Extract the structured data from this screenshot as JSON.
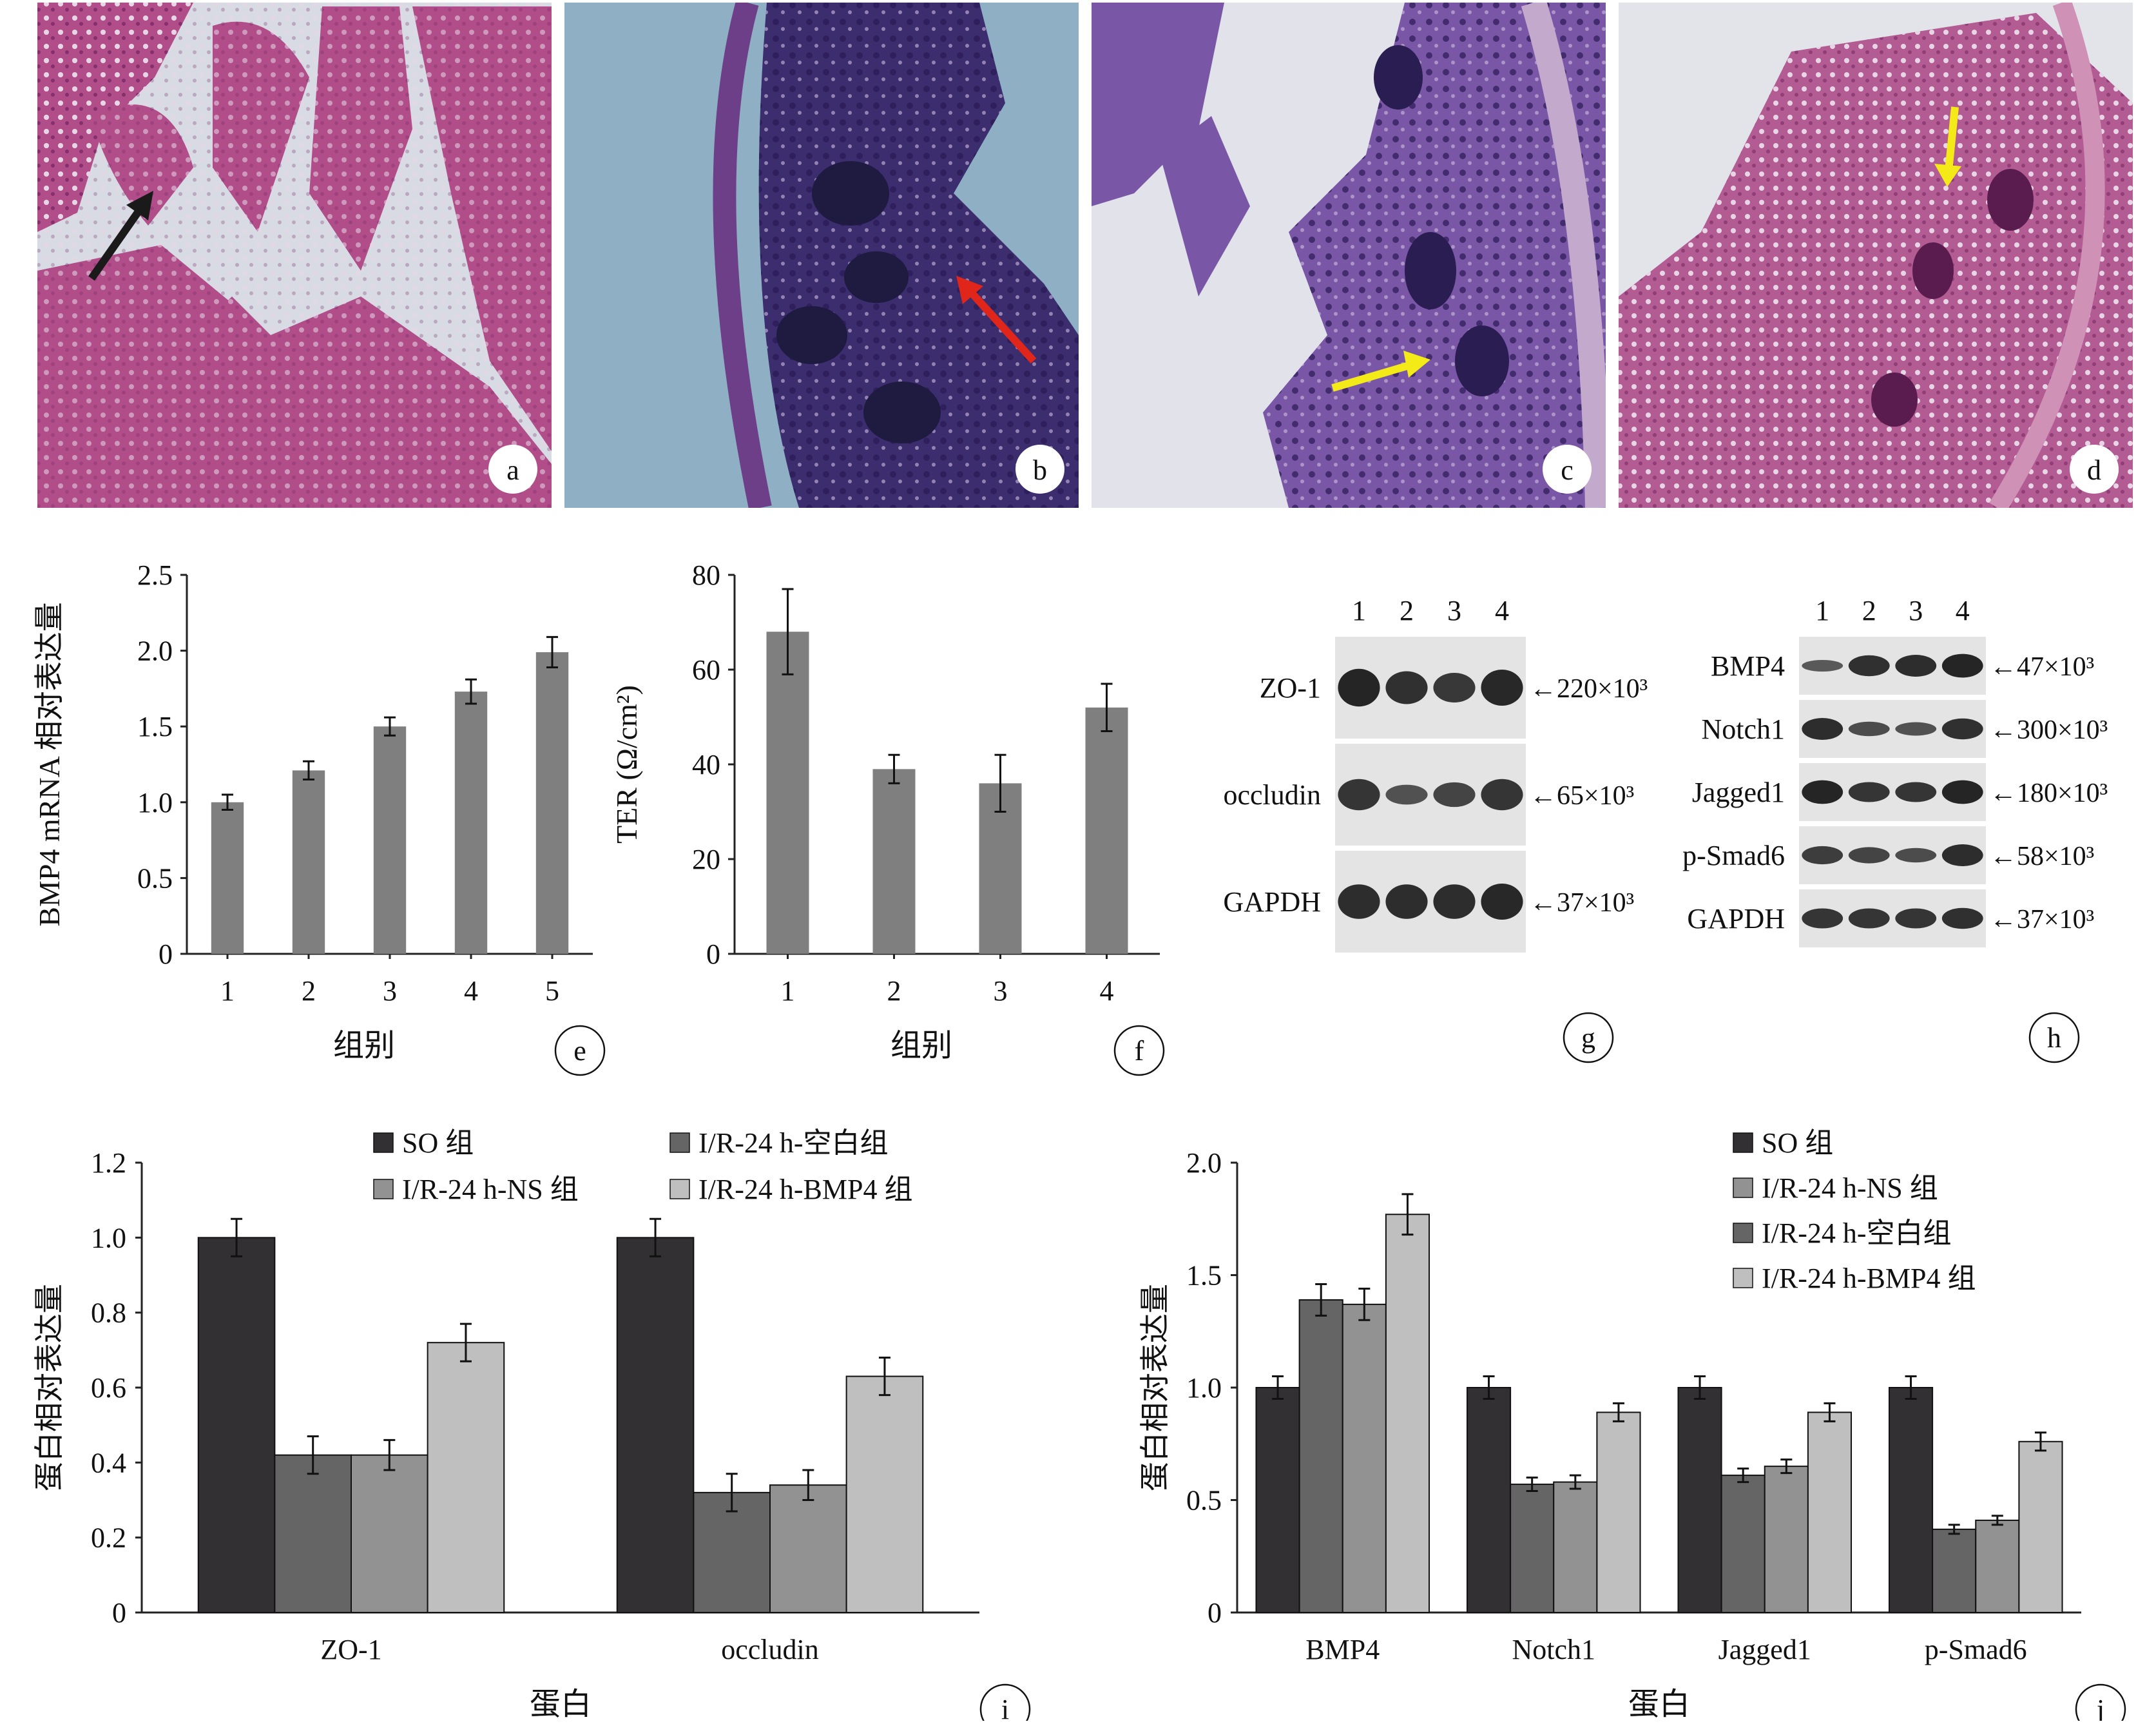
{
  "histology": {
    "panels": [
      {
        "letter": "a",
        "base": "#b14e8a",
        "arrow_color": "#1a1a1a"
      },
      {
        "letter": "b",
        "base": "#8fb0c4",
        "arrow_color": "#e0261b"
      },
      {
        "letter": "c",
        "base": "#7a57a6",
        "arrow_color": "#f3ea17"
      },
      {
        "letter": "d",
        "base": "#b35c93",
        "arrow_color": "#f3ea17"
      }
    ]
  },
  "panel_e": {
    "letter": "e",
    "chart_data": {
      "type": "bar",
      "categories": [
        "1",
        "2",
        "3",
        "4",
        "5"
      ],
      "values": [
        1.0,
        1.21,
        1.5,
        1.73,
        1.99
      ],
      "errors": [
        0.05,
        0.06,
        0.06,
        0.08,
        0.1
      ],
      "ylim": [
        0,
        2.5
      ],
      "yticks": [
        "0",
        "0.5",
        "1.0",
        "1.5",
        "2.0",
        "2.5"
      ],
      "ylabel": "BMP4 mRNA 相对表达量",
      "xlabel": "组别",
      "bar_color": "#7f7f7f"
    }
  },
  "panel_f": {
    "letter": "f",
    "chart_data": {
      "type": "bar",
      "categories": [
        "1",
        "2",
        "3",
        "4"
      ],
      "values": [
        68,
        39,
        36,
        52
      ],
      "errors": [
        9,
        3,
        6,
        5
      ],
      "ylim": [
        0,
        80
      ],
      "yticks": [
        "0",
        "20",
        "40",
        "60",
        "80"
      ],
      "ylabel": "TER (Ω/cm²)",
      "xlabel": "组别",
      "bar_color": "#7f7f7f"
    }
  },
  "panel_g": {
    "letter": "g",
    "lanes": [
      "1",
      "2",
      "3",
      "4"
    ],
    "rows": [
      {
        "name": "ZO-1",
        "mw": "←220×10³"
      },
      {
        "name": "occludin",
        "mw": "←65×10³"
      },
      {
        "name": "GAPDH",
        "mw": "←37×10³"
      }
    ]
  },
  "panel_h": {
    "letter": "h",
    "lanes": [
      "1",
      "2",
      "3",
      "4"
    ],
    "rows": [
      {
        "name": "BMP4",
        "mw": "←47×10³"
      },
      {
        "name": "Notch1",
        "mw": "←300×10³"
      },
      {
        "name": "Jagged1",
        "mw": "←180×10³"
      },
      {
        "name": "p-Smad6",
        "mw": "←58×10³"
      },
      {
        "name": "GAPDH",
        "mw": "←37×10³"
      }
    ]
  },
  "panel_i": {
    "letter": "i",
    "chart_data": {
      "type": "bar",
      "categories": [
        "ZO-1",
        "occludin"
      ],
      "series": [
        {
          "name": "SO 组",
          "color": "#333033",
          "values": [
            1.0,
            1.0
          ],
          "errors": [
            0.05,
            0.05
          ]
        },
        {
          "name": "I/R-24 h-空白组",
          "color": "#656565",
          "values": [
            0.42,
            0.32
          ],
          "errors": [
            0.05,
            0.05
          ]
        },
        {
          "name": "I/R-24 h-NS 组",
          "color": "#929292",
          "values": [
            0.42,
            0.34
          ],
          "errors": [
            0.04,
            0.04
          ]
        },
        {
          "name": "I/R-24 h-BMP4 组",
          "color": "#bfbfbf",
          "values": [
            0.72,
            0.63
          ],
          "errors": [
            0.05,
            0.05
          ]
        }
      ],
      "legend_order": [
        0,
        1,
        2,
        3
      ],
      "ylim": [
        0,
        1.2
      ],
      "yticks": [
        "0",
        "0.2",
        "0.4",
        "0.6",
        "0.8",
        "1.0",
        "1.2"
      ],
      "ylabel": "蛋白相对表达量",
      "xlabel": "蛋白"
    }
  },
  "panel_j": {
    "letter": "j",
    "chart_data": {
      "type": "bar",
      "categories": [
        "BMP4",
        "Notch1",
        "Jagged1",
        "p-Smad6"
      ],
      "series": [
        {
          "name": "SO 组",
          "color": "#333033",
          "values": [
            1.0,
            1.0,
            1.0,
            1.0
          ],
          "errors": [
            0.05,
            0.05,
            0.05,
            0.05
          ]
        },
        {
          "name": "I/R-24 h-空白组",
          "color": "#656565",
          "values": [
            1.39,
            0.57,
            0.61,
            0.37
          ],
          "errors": [
            0.07,
            0.03,
            0.03,
            0.02
          ]
        },
        {
          "name": "I/R-24 h-NS 组",
          "color": "#929292",
          "values": [
            1.37,
            0.58,
            0.65,
            0.41
          ],
          "errors": [
            0.07,
            0.03,
            0.03,
            0.02
          ]
        },
        {
          "name": "I/R-24 h-BMP4 组",
          "color": "#bfbfbf",
          "values": [
            1.77,
            0.89,
            0.89,
            0.76
          ],
          "errors": [
            0.09,
            0.04,
            0.04,
            0.04
          ]
        }
      ],
      "legend_order": [
        0,
        2,
        1,
        3
      ],
      "ylim": [
        0,
        2.0
      ],
      "yticks": [
        "0",
        "0.5",
        "1.0",
        "1.5",
        "2.0"
      ],
      "ylabel": "蛋白相对表达量",
      "xlabel": "蛋白"
    }
  }
}
